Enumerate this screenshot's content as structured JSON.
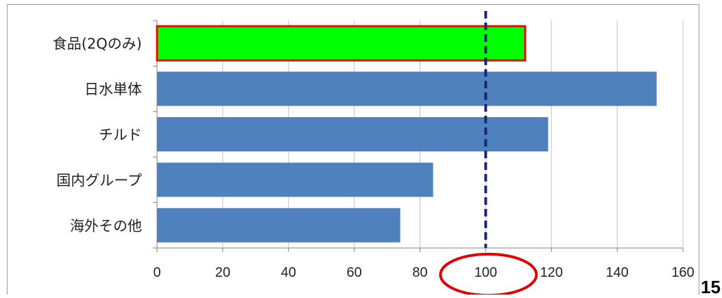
{
  "chart_data": {
    "type": "bar",
    "orientation": "horizontal",
    "categories": [
      "食品(2Qのみ)",
      "日水単体",
      "チルド",
      "国内グループ",
      "海外その他"
    ],
    "values": [
      112,
      152,
      119,
      84,
      74
    ],
    "xlim": [
      0,
      160
    ],
    "xticks": [
      0,
      20,
      40,
      60,
      80,
      100,
      120,
      140,
      160
    ],
    "reference_line": 100,
    "highlighted_category": "食品(2Qのみ)",
    "highlighted_tick": 100,
    "grid": "vertical",
    "title": "",
    "xlabel": "",
    "ylabel": ""
  },
  "colors": {
    "bar": "#4f81bd",
    "highlight_fill": "#00ff00",
    "highlight_border": "#ff0000",
    "reference_line": "#1a237e",
    "circle": "#e00000",
    "grid": "#c0c0c0"
  },
  "page_number": "15"
}
